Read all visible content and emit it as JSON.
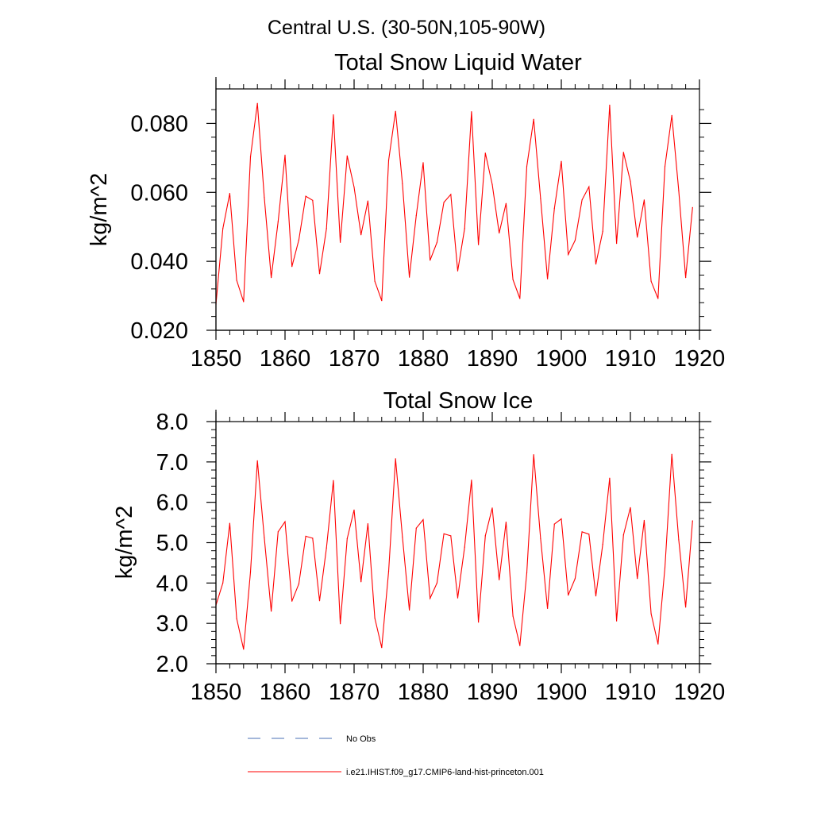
{
  "figure": {
    "title": "Central U.S. (30-50N,105-90W)"
  },
  "chart_data": [
    {
      "type": "line",
      "title": "Total Snow Liquid Water",
      "xlabel": "",
      "ylabel": "kg/m^2",
      "xlim": [
        1850,
        1920
      ],
      "ylim": [
        0.02,
        0.09
      ],
      "x_ticks": [
        "1850",
        "1860",
        "1870",
        "1880",
        "1890",
        "1900",
        "1910",
        "1920"
      ],
      "y_ticks": [
        "0.020",
        "0.040",
        "0.060",
        "0.080"
      ],
      "y_tick_values": [
        0.02,
        0.04,
        0.06,
        0.08
      ],
      "y_minor_step": 0.004,
      "grid": false,
      "series": [
        {
          "name": "i.e21.IHIST.f09_g17.CMIP6-land-hist-princeton.001",
          "color": "#ff0000",
          "x": [
            1850,
            1851,
            1852,
            1853,
            1854,
            1855,
            1856,
            1857,
            1858,
            1859,
            1860,
            1861,
            1862,
            1863,
            1864,
            1865,
            1866,
            1867,
            1868,
            1869,
            1870,
            1871,
            1872,
            1873,
            1874,
            1875,
            1876,
            1877,
            1878,
            1879,
            1880,
            1881,
            1882,
            1883,
            1884,
            1885,
            1886,
            1887,
            1888,
            1889,
            1890,
            1891,
            1892,
            1893,
            1894,
            1895,
            1896,
            1897,
            1898,
            1899,
            1900,
            1901,
            1902,
            1903,
            1904,
            1905,
            1906,
            1907,
            1908,
            1909,
            1910,
            1911,
            1912,
            1913,
            1914,
            1915,
            1916,
            1917,
            1918,
            1919
          ],
          "values": [
            0.0275,
            0.0495,
            0.0597,
            0.0345,
            0.0283,
            0.0703,
            0.0858,
            0.0585,
            0.0353,
            0.0515,
            0.0708,
            0.0385,
            0.0462,
            0.0589,
            0.0577,
            0.0364,
            0.0495,
            0.0825,
            0.0455,
            0.0706,
            0.0615,
            0.0477,
            0.0575,
            0.0342,
            0.0286,
            0.0693,
            0.0835,
            0.0625,
            0.0354,
            0.0533,
            0.0686,
            0.0403,
            0.0455,
            0.0571,
            0.0594,
            0.0372,
            0.0495,
            0.0834,
            0.0448,
            0.0714,
            0.0623,
            0.0482,
            0.0568,
            0.0347,
            0.0292,
            0.0675,
            0.0812,
            0.0582,
            0.0349,
            0.0554,
            0.069,
            0.042,
            0.0461,
            0.0578,
            0.0616,
            0.0392,
            0.0487,
            0.0853,
            0.0452,
            0.0716,
            0.0632,
            0.047,
            0.0578,
            0.0342,
            0.0292,
            0.0675,
            0.0823,
            0.0605,
            0.0353,
            0.0556
          ]
        }
      ]
    },
    {
      "type": "line",
      "title": "Total Snow Ice",
      "xlabel": "",
      "ylabel": "kg/m^2",
      "xlim": [
        1850,
        1920
      ],
      "ylim": [
        2.0,
        8.0
      ],
      "x_ticks": [
        "1850",
        "1860",
        "1870",
        "1880",
        "1890",
        "1900",
        "1910",
        "1920"
      ],
      "y_ticks": [
        "2.0",
        "3.0",
        "4.0",
        "5.0",
        "6.0",
        "7.0",
        "8.0"
      ],
      "y_tick_values": [
        2,
        3,
        4,
        5,
        6,
        7,
        8
      ],
      "y_minor_step": 0.2,
      "grid": false,
      "series": [
        {
          "name": "i.e21.IHIST.f09_g17.CMIP6-land-hist-princeton.001",
          "color": "#ff0000",
          "x": [
            1850,
            1851,
            1852,
            1853,
            1854,
            1855,
            1856,
            1857,
            1858,
            1859,
            1860,
            1861,
            1862,
            1863,
            1864,
            1865,
            1866,
            1867,
            1868,
            1869,
            1870,
            1871,
            1872,
            1873,
            1874,
            1875,
            1876,
            1877,
            1878,
            1879,
            1880,
            1881,
            1882,
            1883,
            1884,
            1885,
            1886,
            1887,
            1888,
            1889,
            1890,
            1891,
            1892,
            1893,
            1894,
            1895,
            1896,
            1897,
            1898,
            1899,
            1900,
            1901,
            1902,
            1903,
            1904,
            1905,
            1906,
            1907,
            1908,
            1909,
            1910,
            1911,
            1912,
            1913,
            1914,
            1915,
            1916,
            1917,
            1918,
            1919
          ],
          "values": [
            3.45,
            4.0,
            5.48,
            3.12,
            2.36,
            4.27,
            7.03,
            5.12,
            3.3,
            5.27,
            5.52,
            3.55,
            3.98,
            5.16,
            5.11,
            3.56,
            4.87,
            6.54,
            2.99,
            5.1,
            5.81,
            4.03,
            5.47,
            3.13,
            2.4,
            4.29,
            7.08,
            5.14,
            3.33,
            5.36,
            5.57,
            3.62,
            4.0,
            5.22,
            5.17,
            3.63,
            4.89,
            6.55,
            3.03,
            5.17,
            5.86,
            4.08,
            5.51,
            3.18,
            2.45,
            4.25,
            7.18,
            5.1,
            3.37,
            5.46,
            5.59,
            3.7,
            4.11,
            5.27,
            5.21,
            3.68,
            4.96,
            6.6,
            3.06,
            5.19,
            5.87,
            4.11,
            5.55,
            3.24,
            2.49,
            4.38,
            7.19,
            5.07,
            3.4,
            5.54
          ]
        }
      ]
    }
  ],
  "legend": {
    "placement": "bottom",
    "entries": [
      {
        "label": "No Obs",
        "color": "#4a6fb5",
        "style": "dashed"
      },
      {
        "label": "i.e21.IHIST.f09_g17.CMIP6-land-hist-princeton.001",
        "color": "#ff0000",
        "style": "solid"
      }
    ]
  }
}
